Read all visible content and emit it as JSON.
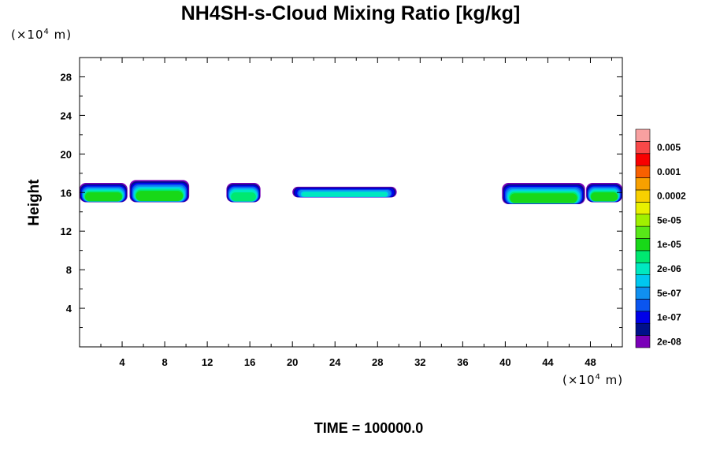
{
  "chart_data": {
    "type": "heatmap",
    "title": "NH4SH-s-Cloud Mixing Ratio [kg/kg]",
    "ylabel": "Height",
    "x_unit": {
      "pre": "(×10",
      "exp": "4",
      "post": " m)"
    },
    "y_unit": {
      "pre": "(×10",
      "exp": "4",
      "post": " m)"
    },
    "xlim": [
      0,
      51
    ],
    "ylim": [
      0,
      30
    ],
    "x_ticks": [
      4,
      8,
      12,
      16,
      20,
      24,
      28,
      32,
      36,
      40,
      44,
      48
    ],
    "y_ticks": [
      4,
      8,
      12,
      16,
      20,
      24,
      28
    ],
    "x_minor_step": 2,
    "y_minor_step": 2,
    "colorbar": {
      "colors": [
        "#7a00b8",
        "#00108a",
        "#0000e8",
        "#0a55f0",
        "#1090f0",
        "#00c8f0",
        "#00e8c0",
        "#00e870",
        "#18d818",
        "#58e818",
        "#a0f000",
        "#e8f000",
        "#f8d000",
        "#f8a000",
        "#f86000",
        "#f80000",
        "#f84848",
        "#f8a0a0"
      ],
      "labels": [
        "2e-08",
        "1e-07",
        "5e-07",
        "2e-06",
        "1e-05",
        "5e-05",
        "0.0002",
        "0.001",
        "0.005"
      ]
    },
    "cloud_layers": [
      {
        "x_start": 0.0,
        "x_end": 4.5,
        "y_bottom": 15.0,
        "y_top": 17.0,
        "peak": 1.6e-05
      },
      {
        "x_start": 4.7,
        "x_end": 10.3,
        "y_bottom": 15.0,
        "y_top": 17.3,
        "peak": 2e-05
      },
      {
        "x_start": 13.8,
        "x_end": 17.0,
        "y_bottom": 15.0,
        "y_top": 17.0,
        "peak": 8e-06
      },
      {
        "x_start": 20.0,
        "x_end": 29.8,
        "y_bottom": 15.5,
        "y_top": 16.6,
        "peak": 2e-06
      },
      {
        "x_start": 39.7,
        "x_end": 47.5,
        "y_bottom": 14.8,
        "y_top": 17.0,
        "peak": 1.6e-05
      },
      {
        "x_start": 47.6,
        "x_end": 51.0,
        "y_bottom": 15.0,
        "y_top": 17.0,
        "peak": 1.6e-05
      }
    ],
    "footer": "TIME = 100000.0"
  }
}
